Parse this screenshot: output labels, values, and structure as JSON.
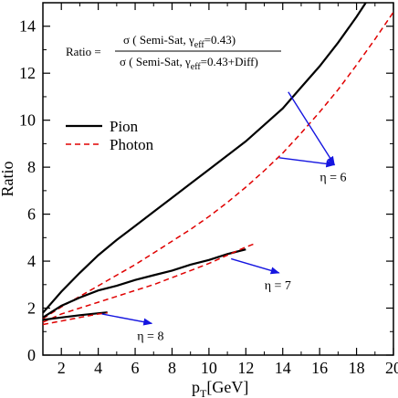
{
  "chart_data": {
    "type": "line",
    "xlabel_main": "p",
    "xlabel_sub": "T",
    "xlabel_unit": "[GeV]",
    "ylabel": "Ratio",
    "xlim": [
      1,
      20
    ],
    "ylim": [
      0,
      15
    ],
    "xticks": [
      2,
      4,
      6,
      8,
      10,
      12,
      14,
      16,
      18,
      20
    ],
    "yticks": [
      0,
      2,
      4,
      6,
      8,
      10,
      12,
      14
    ],
    "formula": {
      "lhs": "Ratio =",
      "num_a": "σ ( Semi-Sat, γ",
      "num_sub": "eff",
      "num_b": "=0.43)",
      "den_a": "σ ( Semi-Sat, γ",
      "den_sub": "eff",
      "den_b": "=0.43+Diff)"
    },
    "legend": [
      {
        "label": "Pion",
        "color": "#000000",
        "dash": "solid"
      },
      {
        "label": "Photon",
        "color": "#e00000",
        "dash": "dashed"
      }
    ],
    "series": [
      {
        "label": "Pion",
        "eta": "η = 6",
        "color": "#000000",
        "dash": "solid",
        "points": [
          [
            1,
            1.8
          ],
          [
            2,
            2.7
          ],
          [
            3,
            3.5
          ],
          [
            4,
            4.25
          ],
          [
            5,
            4.9
          ],
          [
            6,
            5.5
          ],
          [
            7,
            6.1
          ],
          [
            8,
            6.7
          ],
          [
            9,
            7.3
          ],
          [
            10,
            7.9
          ],
          [
            11,
            8.5
          ],
          [
            12,
            9.1
          ],
          [
            13,
            9.8
          ],
          [
            14,
            10.5
          ],
          [
            15,
            11.4
          ],
          [
            16,
            12.3
          ],
          [
            17,
            13.3
          ],
          [
            18,
            14.4
          ],
          [
            18.5,
            15.0
          ]
        ]
      },
      {
        "label": "Photon",
        "eta": "η = 6",
        "color": "#e00000",
        "dash": "dashed",
        "points": [
          [
            1,
            1.55
          ],
          [
            2,
            2.05
          ],
          [
            3,
            2.5
          ],
          [
            4,
            2.95
          ],
          [
            5,
            3.4
          ],
          [
            6,
            3.85
          ],
          [
            7,
            4.35
          ],
          [
            8,
            4.85
          ],
          [
            9,
            5.35
          ],
          [
            10,
            5.9
          ],
          [
            11,
            6.5
          ],
          [
            12,
            7.15
          ],
          [
            13,
            7.85
          ],
          [
            14,
            8.6
          ],
          [
            15,
            9.45
          ],
          [
            16,
            10.35
          ],
          [
            17,
            11.3
          ],
          [
            18,
            12.35
          ],
          [
            19,
            13.45
          ],
          [
            20,
            14.6
          ]
        ]
      },
      {
        "label": "Pion",
        "eta": "η = 7",
        "color": "#000000",
        "dash": "solid",
        "points": [
          [
            1,
            1.6
          ],
          [
            2,
            2.1
          ],
          [
            3,
            2.45
          ],
          [
            4,
            2.75
          ],
          [
            5,
            2.95
          ],
          [
            6,
            3.2
          ],
          [
            7,
            3.4
          ],
          [
            8,
            3.6
          ],
          [
            9,
            3.85
          ],
          [
            10,
            4.05
          ],
          [
            11,
            4.3
          ],
          [
            12,
            4.5
          ]
        ]
      },
      {
        "label": "Photon",
        "eta": "η = 7",
        "color": "#e00000",
        "dash": "dashed",
        "points": [
          [
            1,
            1.4
          ],
          [
            2,
            1.75
          ],
          [
            3,
            2.0
          ],
          [
            4,
            2.25
          ],
          [
            5,
            2.5
          ],
          [
            6,
            2.75
          ],
          [
            7,
            3.0
          ],
          [
            8,
            3.3
          ],
          [
            9,
            3.6
          ],
          [
            10,
            3.9
          ],
          [
            11,
            4.25
          ],
          [
            12,
            4.6
          ],
          [
            12.5,
            4.75
          ]
        ]
      },
      {
        "label": "Pion",
        "eta": "η = 8",
        "color": "#000000",
        "dash": "solid",
        "points": [
          [
            1,
            1.5
          ],
          [
            2,
            1.6
          ],
          [
            3,
            1.7
          ],
          [
            4,
            1.78
          ],
          [
            4.5,
            1.82
          ]
        ]
      },
      {
        "label": "Photon",
        "eta": "η = 8",
        "color": "#e00000",
        "dash": "dashed",
        "points": [
          [
            1,
            1.3
          ],
          [
            2,
            1.45
          ],
          [
            3,
            1.6
          ],
          [
            4,
            1.75
          ],
          [
            4.5,
            1.8
          ]
        ]
      }
    ],
    "annotations": [
      {
        "text": "η = 6",
        "from": [
          14.3,
          11.2
        ],
        "to": [
          16.8,
          8.1
        ],
        "from2": [
          13.8,
          8.4
        ]
      },
      {
        "text": "η = 7",
        "from": [
          11.2,
          4.1
        ],
        "to": [
          13.8,
          3.5
        ]
      },
      {
        "text": "η = 8",
        "from": [
          4.2,
          1.75
        ],
        "to": [
          6.9,
          1.35
        ]
      }
    ]
  }
}
